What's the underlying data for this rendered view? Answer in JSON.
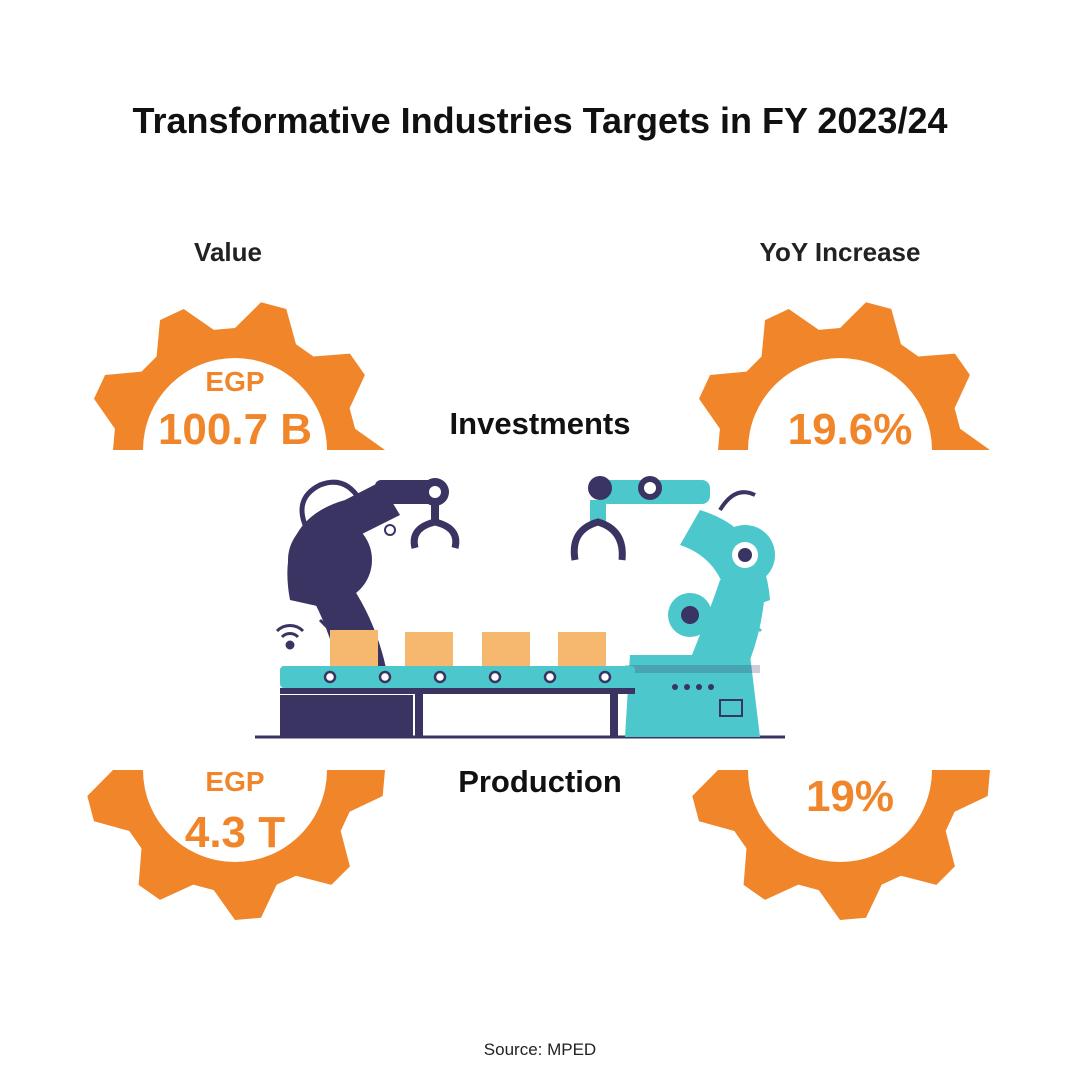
{
  "title": "Transformative Industries Targets in FY 2023/24",
  "column_labels": {
    "value": "Value",
    "yoy": "YoY Increase"
  },
  "sections": {
    "investments": {
      "label": "Investments",
      "value_prefix": "EGP",
      "value": "100.7 B",
      "yoy": "19.6%"
    },
    "production": {
      "label": "Production",
      "value_prefix": "EGP",
      "value": "4.3 T",
      "yoy": "19%"
    }
  },
  "source": "Source: MPED",
  "colors": {
    "accent_orange": "#f0852a",
    "robot_dark": "#3a3463",
    "robot_teal": "#4cc8cc",
    "box_orange": "#f6b86e"
  },
  "icons": [
    "gear-icon",
    "robot-arm-icon",
    "conveyor-belt-icon",
    "box-icon",
    "wifi-signal-icon"
  ]
}
